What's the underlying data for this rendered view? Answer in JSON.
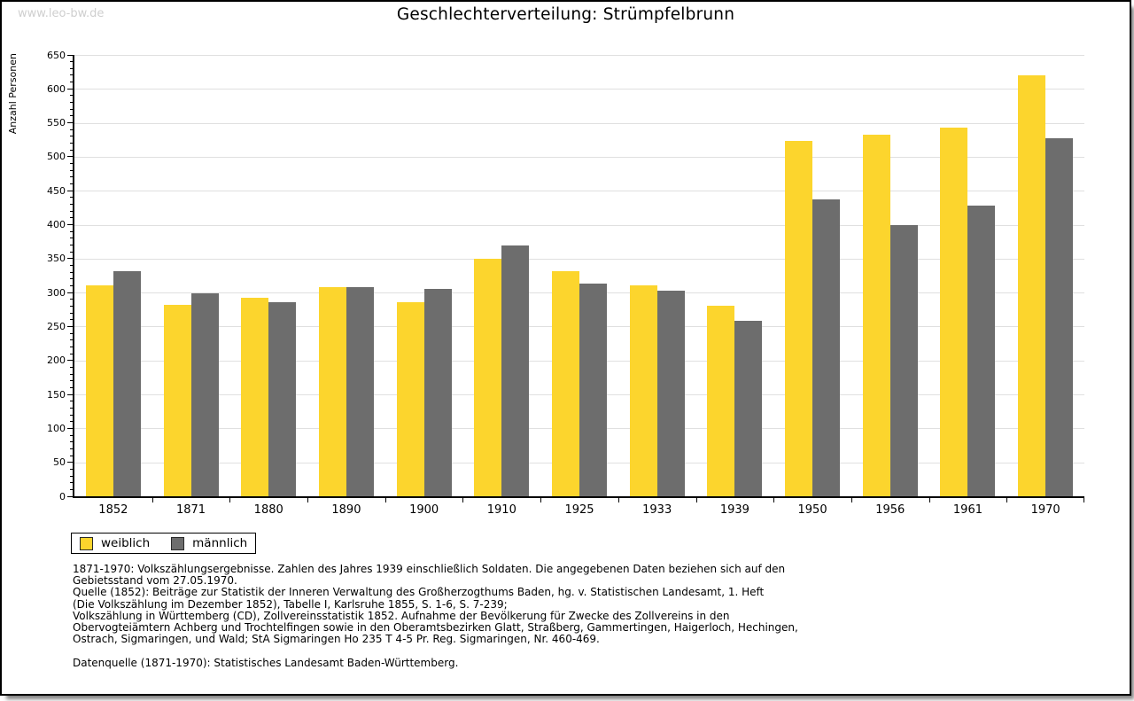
{
  "watermark": "www.leo-bw.de",
  "header": {
    "title": "Geschlechterverteilung: Strümpfelbrunn"
  },
  "chart_data": {
    "type": "bar",
    "title": "Geschlechterverteilung: Strümpfelbrunn",
    "xlabel": "",
    "ylabel": "Anzahl Personen",
    "ylim": [
      0,
      650
    ],
    "ytick_step": 50,
    "minor_tick_step": 10,
    "grid": true,
    "legend_position": "bottom-left",
    "categories": [
      "1852",
      "1871",
      "1880",
      "1890",
      "1900",
      "1910",
      "1925",
      "1933",
      "1939",
      "1950",
      "1956",
      "1961",
      "1970"
    ],
    "series": [
      {
        "name": "weiblich",
        "color": "#FCD52D",
        "values": [
          311,
          282,
          293,
          308,
          286,
          350,
          331,
          311,
          280,
          524,
          532,
          543,
          620
        ]
      },
      {
        "name": "männlich",
        "color": "#6D6D6D",
        "values": [
          331,
          299,
          286,
          308,
          306,
          369,
          313,
          303,
          258,
          437,
          400,
          428,
          527
        ]
      }
    ]
  },
  "colors": {
    "grid": "#E0E0E0",
    "axis": "#000000",
    "watermark": "#CFCFCF",
    "weiblich": "#FCD52D",
    "maennlich": "#6D6D6D"
  },
  "footnotes": {
    "block1": "1871-1970: Volkszählungsergebnisse. Zahlen des Jahres 1939 einschließlich Soldaten. Die angegebenen Daten beziehen sich auf den\nGebietsstand vom 27.05.1970.\nQuelle (1852): Beiträge zur Statistik der Inneren Verwaltung des Großherzogthums Baden, hg. v. Statistischen Landesamt, 1. Heft\n(Die Volkszählung im Dezember 1852), Tabelle I, Karlsruhe 1855, S. 1-6, S. 7-239;\nVolkszählung in Württemberg (CD), Zollvereinsstatistik 1852. Aufnahme der Bevölkerung für Zwecke des Zollvereins in den\nObervogteiämtern Achberg und Trochtelfingen sowie in den Oberamtsbezirken Glatt, Straßberg, Gammertingen, Haigerloch, Hechingen,\nOstrach, Sigmaringen, und Wald; StA Sigmaringen Ho 235 T 4-5 Pr. Reg. Sigmaringen, Nr. 460-469.",
    "block2": "Datenquelle (1871-1970): Statistisches Landesamt Baden-Württemberg."
  }
}
